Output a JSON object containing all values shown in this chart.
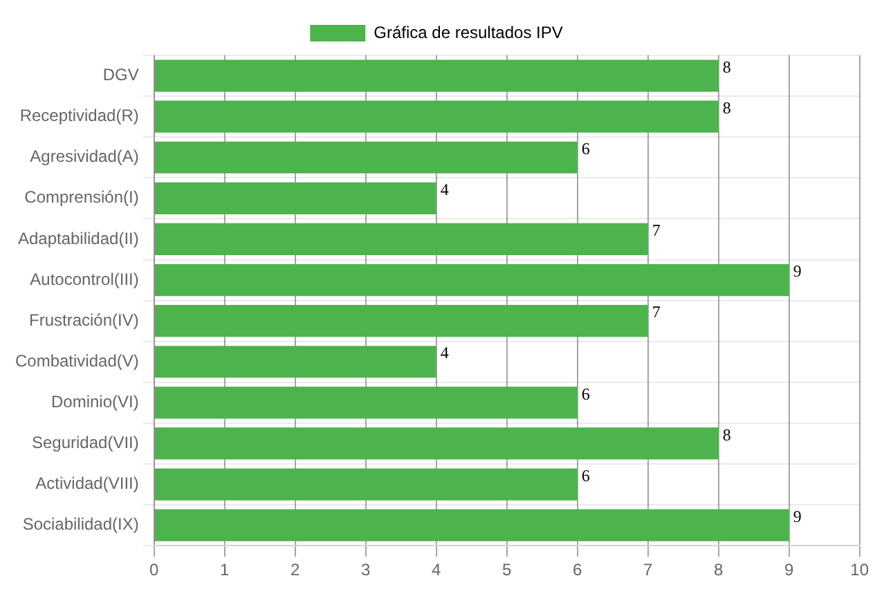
{
  "chart_data": {
    "type": "bar",
    "orientation": "horizontal",
    "categories": [
      "DGV",
      "Receptividad(R)",
      "Agresividad(A)",
      "Comprensión(I)",
      "Adaptabilidad(II)",
      "Autocontrol(III)",
      "Frustración(IV)",
      "Combatividad(V)",
      "Dominio(VI)",
      "Seguridad(VII)",
      "Actividad(VIII)",
      "Sociabilidad(IX)"
    ],
    "series": [
      {
        "name": "Gráfica de resultados IPV",
        "color": "#4db34d",
        "values": [
          8,
          8,
          6,
          4,
          7,
          9,
          7,
          4,
          6,
          8,
          6,
          9
        ]
      }
    ],
    "xlim": [
      0,
      10
    ],
    "xticks": [
      0,
      1,
      2,
      3,
      4,
      5,
      6,
      7,
      8,
      9,
      10
    ],
    "grid": true,
    "legend": "top",
    "data_labels": true
  }
}
